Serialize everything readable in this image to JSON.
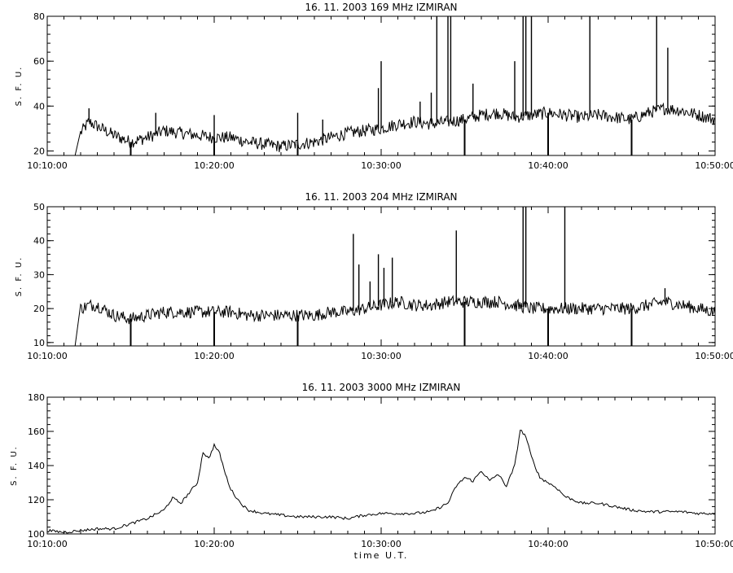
{
  "chart_data": [
    {
      "type": "line",
      "title": "16. 11. 2003   169 MHz    IZMIRAN",
      "ylabel": "S. F. U.",
      "xlabel": "",
      "xlim": [
        "10:10:00",
        "10:50:00"
      ],
      "xticks": [
        "10:10:00",
        "10:20:00",
        "10:30:00",
        "10:40:00",
        "10:50:00"
      ],
      "ylim": [
        18,
        80
      ],
      "yticks": [
        20,
        40,
        60,
        80
      ],
      "grid": false,
      "baseline_points": [
        [
          "10:12:00",
          28
        ],
        [
          "10:12:30",
          33
        ],
        [
          "10:13:00",
          31
        ],
        [
          "10:14:00",
          27
        ],
        [
          "10:15:00",
          24
        ],
        [
          "10:16:00",
          26
        ],
        [
          "10:17:00",
          29
        ],
        [
          "10:18:00",
          28
        ],
        [
          "10:19:00",
          27
        ],
        [
          "10:20:00",
          26
        ],
        [
          "10:21:00",
          26
        ],
        [
          "10:22:00",
          24
        ],
        [
          "10:23:00",
          23
        ],
        [
          "10:24:00",
          22
        ],
        [
          "10:25:00",
          23
        ],
        [
          "10:26:00",
          24
        ],
        [
          "10:27:00",
          26
        ],
        [
          "10:28:00",
          28
        ],
        [
          "10:29:00",
          29
        ],
        [
          "10:30:00",
          30
        ],
        [
          "10:31:00",
          32
        ],
        [
          "10:32:00",
          33
        ],
        [
          "10:33:00",
          32
        ],
        [
          "10:34:00",
          33
        ],
        [
          "10:35:00",
          34
        ],
        [
          "10:36:00",
          36
        ],
        [
          "10:37:00",
          37
        ],
        [
          "10:38:00",
          35
        ],
        [
          "10:39:00",
          36
        ],
        [
          "10:40:00",
          37
        ],
        [
          "10:41:00",
          36
        ],
        [
          "10:42:00",
          35
        ],
        [
          "10:43:00",
          36
        ],
        [
          "10:44:00",
          35
        ],
        [
          "10:45:00",
          34
        ],
        [
          "10:46:00",
          37
        ],
        [
          "10:47:00",
          39
        ],
        [
          "10:48:00",
          38
        ],
        [
          "10:49:00",
          36
        ],
        [
          "10:50:00",
          34
        ]
      ],
      "spikes": [
        [
          "10:12:30",
          39
        ],
        [
          "10:16:30",
          37
        ],
        [
          "10:20:00",
          36
        ],
        [
          "10:25:00",
          37
        ],
        [
          "10:26:30",
          34
        ],
        [
          "10:29:50",
          48
        ],
        [
          "10:30:00",
          60
        ],
        [
          "10:32:20",
          42
        ],
        [
          "10:33:00",
          46
        ],
        [
          "10:33:20",
          80
        ],
        [
          "10:34:00",
          80
        ],
        [
          "10:34:10",
          80
        ],
        [
          "10:35:30",
          50
        ],
        [
          "10:38:00",
          60
        ],
        [
          "10:38:30",
          80
        ],
        [
          "10:38:40",
          80
        ],
        [
          "10:39:00",
          80
        ],
        [
          "10:42:30",
          80
        ],
        [
          "10:46:30",
          80
        ],
        [
          "10:47:10",
          66
        ]
      ],
      "dips": [
        "10:15:00",
        "10:20:00",
        "10:25:00",
        "10:35:00",
        "10:40:00",
        "10:45:00"
      ]
    },
    {
      "type": "line",
      "title": "16. 11. 2003   204 MHz    IZMIRAN",
      "ylabel": "S. F. U.",
      "xlabel": "",
      "xlim": [
        "10:10:00",
        "10:50:00"
      ],
      "xticks": [
        "10:10:00",
        "10:20:00",
        "10:30:00",
        "10:40:00",
        "10:50:00"
      ],
      "ylim": [
        9,
        50
      ],
      "yticks": [
        10,
        20,
        30,
        40,
        50
      ],
      "grid": false,
      "baseline_points": [
        [
          "10:12:00",
          20
        ],
        [
          "10:12:30",
          21
        ],
        [
          "10:13:00",
          21
        ],
        [
          "10:14:00",
          18
        ],
        [
          "10:15:00",
          17
        ],
        [
          "10:16:00",
          18
        ],
        [
          "10:17:00",
          19
        ],
        [
          "10:18:00",
          19
        ],
        [
          "10:19:00",
          19
        ],
        [
          "10:20:00",
          19
        ],
        [
          "10:21:00",
          19
        ],
        [
          "10:22:00",
          18
        ],
        [
          "10:23:00",
          18
        ],
        [
          "10:24:00",
          18
        ],
        [
          "10:25:00",
          18
        ],
        [
          "10:26:00",
          18
        ],
        [
          "10:27:00",
          19
        ],
        [
          "10:28:00",
          19
        ],
        [
          "10:29:00",
          20
        ],
        [
          "10:30:00",
          21
        ],
        [
          "10:31:00",
          22
        ],
        [
          "10:32:00",
          21
        ],
        [
          "10:33:00",
          21
        ],
        [
          "10:34:00",
          22
        ],
        [
          "10:35:00",
          22
        ],
        [
          "10:36:00",
          22
        ],
        [
          "10:37:00",
          22
        ],
        [
          "10:38:00",
          21
        ],
        [
          "10:39:00",
          20
        ],
        [
          "10:40:00",
          20
        ],
        [
          "10:41:00",
          20
        ],
        [
          "10:42:00",
          20
        ],
        [
          "10:43:00",
          20
        ],
        [
          "10:44:00",
          20
        ],
        [
          "10:45:00",
          20
        ],
        [
          "10:46:00",
          21
        ],
        [
          "10:47:00",
          22
        ],
        [
          "10:48:00",
          21
        ],
        [
          "10:49:00",
          20
        ],
        [
          "10:50:00",
          19
        ]
      ],
      "spikes": [
        [
          "10:28:20",
          42
        ],
        [
          "10:28:40",
          33
        ],
        [
          "10:29:20",
          28
        ],
        [
          "10:29:50",
          36
        ],
        [
          "10:30:10",
          32
        ],
        [
          "10:30:40",
          35
        ],
        [
          "10:34:30",
          43
        ],
        [
          "10:38:30",
          50
        ],
        [
          "10:38:40",
          50
        ],
        [
          "10:41:00",
          50
        ],
        [
          "10:47:00",
          26
        ]
      ],
      "dips": [
        "10:15:00",
        "10:20:00",
        "10:25:00",
        "10:35:00",
        "10:40:00",
        "10:45:00"
      ]
    },
    {
      "type": "line",
      "title": "16. 11. 2003   3000 MHz    IZMIRAN",
      "ylabel": "S. F. U.",
      "xlabel": "time  U.T.",
      "xlim": [
        "10:10:00",
        "10:50:00"
      ],
      "xticks": [
        "10:10:00",
        "10:20:00",
        "10:30:00",
        "10:40:00",
        "10:50:00"
      ],
      "ylim": [
        100,
        180
      ],
      "yticks": [
        100,
        120,
        140,
        160,
        180
      ],
      "grid": false,
      "points": [
        [
          "10:10:00",
          102
        ],
        [
          "10:11:00",
          101
        ],
        [
          "10:12:00",
          102
        ],
        [
          "10:13:00",
          103
        ],
        [
          "10:14:00",
          103
        ],
        [
          "10:15:00",
          106
        ],
        [
          "10:16:00",
          109
        ],
        [
          "10:17:00",
          114
        ],
        [
          "10:17:30",
          121
        ],
        [
          "10:18:00",
          118
        ],
        [
          "10:18:30",
          124
        ],
        [
          "10:19:00",
          130
        ],
        [
          "10:19:20",
          148
        ],
        [
          "10:19:40",
          144
        ],
        [
          "10:20:00",
          152
        ],
        [
          "10:20:20",
          147
        ],
        [
          "10:20:40",
          135
        ],
        [
          "10:21:00",
          126
        ],
        [
          "10:21:30",
          119
        ],
        [
          "10:22:00",
          114
        ],
        [
          "10:23:00",
          112
        ],
        [
          "10:24:00",
          111
        ],
        [
          "10:25:00",
          110
        ],
        [
          "10:26:00",
          110
        ],
        [
          "10:27:00",
          110
        ],
        [
          "10:28:00",
          109
        ],
        [
          "10:29:00",
          111
        ],
        [
          "10:30:00",
          112
        ],
        [
          "10:31:00",
          112
        ],
        [
          "10:32:00",
          112
        ],
        [
          "10:33:00",
          113
        ],
        [
          "10:34:00",
          118
        ],
        [
          "10:34:30",
          128
        ],
        [
          "10:35:00",
          133
        ],
        [
          "10:35:30",
          131
        ],
        [
          "10:36:00",
          137
        ],
        [
          "10:36:30",
          131
        ],
        [
          "10:37:00",
          135
        ],
        [
          "10:37:30",
          128
        ],
        [
          "10:38:00",
          140
        ],
        [
          "10:38:20",
          161
        ],
        [
          "10:38:40",
          157
        ],
        [
          "10:39:00",
          145
        ],
        [
          "10:39:30",
          133
        ],
        [
          "10:40:00",
          130
        ],
        [
          "10:40:30",
          127
        ],
        [
          "10:41:00",
          122
        ],
        [
          "10:42:00",
          118
        ],
        [
          "10:43:00",
          118
        ],
        [
          "10:44:00",
          116
        ],
        [
          "10:45:00",
          114
        ],
        [
          "10:46:00",
          113
        ],
        [
          "10:47:00",
          113
        ],
        [
          "10:48:00",
          113
        ],
        [
          "10:49:00",
          112
        ],
        [
          "10:50:00",
          112
        ]
      ]
    }
  ]
}
